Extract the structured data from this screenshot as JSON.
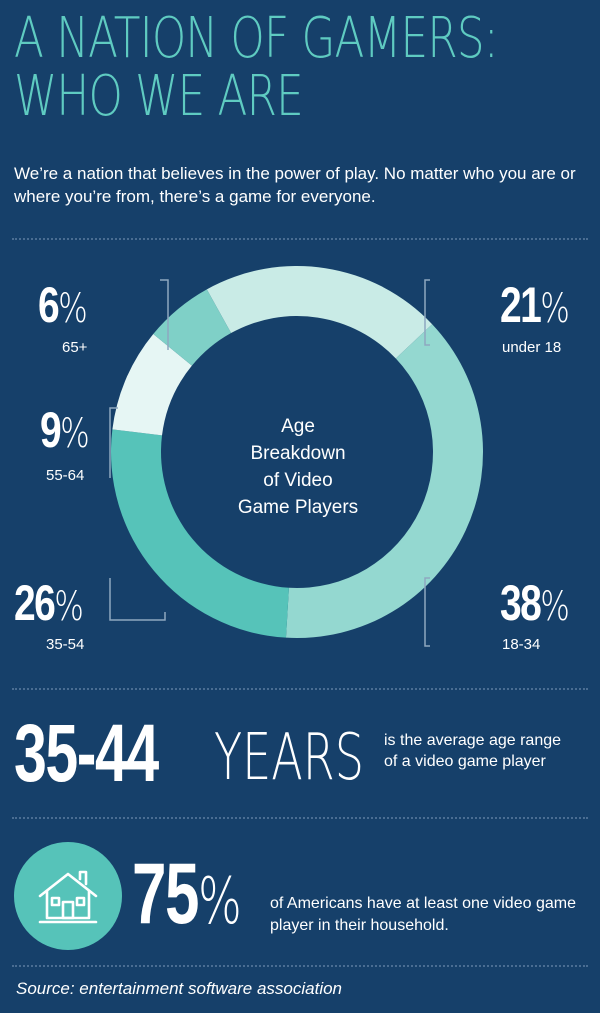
{
  "header": {
    "title_line1": "A NATION OF GAMERS:",
    "title_line2": "WHO WE ARE",
    "intro": "We’re a nation that believes in the power of play. No matter who you are or where you’re from, there’s a game for everyone."
  },
  "chart_data": {
    "type": "pie",
    "style": "donut",
    "title": "Age Breakdown of Video Game Players",
    "center_label_lines": [
      "Age",
      "Breakdown",
      "of Video",
      "Game Players"
    ],
    "slices": [
      {
        "label": "under 18",
        "value": 21,
        "display": "21",
        "color": "#c9ebe6"
      },
      {
        "label": "18-34",
        "value": 38,
        "display": "38",
        "color": "#94d8d0"
      },
      {
        "label": "35-54",
        "value": 26,
        "display": "26",
        "color": "#56c3b9"
      },
      {
        "label": "55-64",
        "value": 9,
        "display": "9",
        "color": "#e6f6f4"
      },
      {
        "label": "65+",
        "value": 6,
        "display": "6",
        "color": "#7fd0c7"
      }
    ],
    "percent_sign": "%"
  },
  "average_age": {
    "value": "35-44",
    "unit": "YEARS",
    "description": "is the average age range of a video game player"
  },
  "household": {
    "value": "75",
    "percent_sign": "%",
    "description": "of Americans have at least one video game player in their household.",
    "icon": "house-icon"
  },
  "source": "Source: entertainment software association",
  "colors": {
    "background": "#16406a",
    "accent": "#5fcbc1"
  }
}
